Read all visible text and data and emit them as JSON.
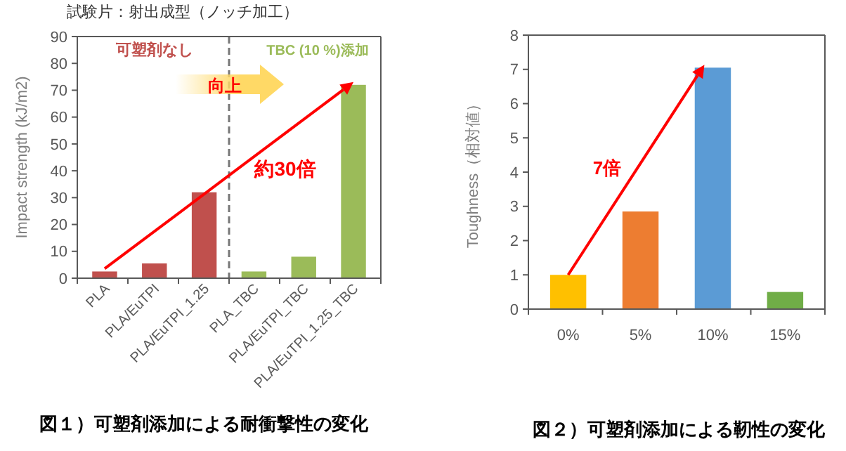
{
  "chart_data": [
    {
      "type": "bar",
      "title": "試験片：射出成型（ノッチ加工）",
      "ylabel": "Impact strength (kJ/m2)",
      "categories": [
        "PLA",
        "PLA/EuTPI",
        "PLA/EuTPI_1.25",
        "PLA_TBC",
        "PLA/EuTPI_TBC",
        "PLA/EuTPI_1.25_TBC"
      ],
      "values": [
        2.5,
        5.5,
        32,
        2.5,
        8,
        72
      ],
      "colors": [
        "#c0504d",
        "#c0504d",
        "#c0504d",
        "#9bbb59",
        "#9bbb59",
        "#9bbb59"
      ],
      "ylim": [
        0,
        90
      ],
      "yticks": [
        0,
        10,
        20,
        30,
        40,
        50,
        60,
        70,
        80,
        90
      ],
      "grid": false,
      "annotations": [
        "可塑剤なし",
        "TBC (10 %)添加",
        "向上",
        "約30倍",
        "図１）可塑剤添加による耐衝撃性の変化"
      ]
    },
    {
      "type": "bar",
      "ylabel": "Toughness（相対値）",
      "categories": [
        "0%",
        "5%",
        "10%",
        "15%"
      ],
      "values": [
        1,
        2.85,
        7.05,
        0.5
      ],
      "colors": [
        "#ffc000",
        "#ed7d31",
        "#5b9bd5",
        "#70ad47"
      ],
      "ylim": [
        0,
        8
      ],
      "yticks": [
        0,
        1,
        2,
        3,
        4,
        5,
        6,
        7,
        8
      ],
      "grid": false,
      "annotations": [
        "7倍",
        "図２）可塑剤添加による靭性の変化"
      ]
    }
  ]
}
